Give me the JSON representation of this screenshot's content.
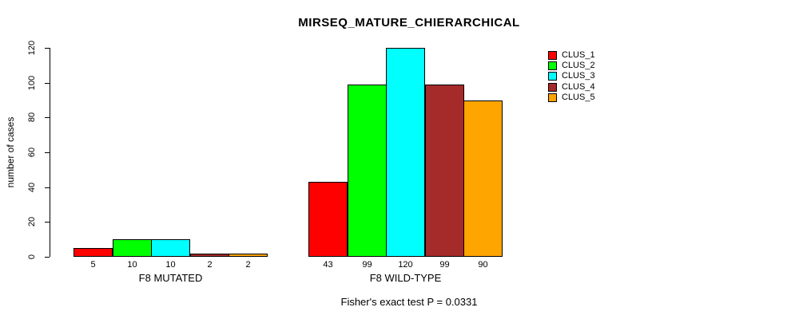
{
  "chart_data": {
    "type": "bar",
    "title": "MIRSEQ_MATURE_CHIERARCHICAL",
    "ylabel": "number of cases",
    "xlabel": "",
    "caption": "Fisher's exact test P = 0.0331",
    "ylim": [
      0,
      120
    ],
    "yticks": [
      0,
      20,
      40,
      60,
      80,
      100,
      120
    ],
    "grid": false,
    "legend_position": "right",
    "bar_value_labels_shown": true,
    "categories": [
      "F8 MUTATED",
      "F8 WILD-TYPE"
    ],
    "series": [
      {
        "name": "CLUS_1",
        "color": "#FF0000",
        "values": [
          5,
          43
        ]
      },
      {
        "name": "CLUS_2",
        "color": "#00FF00",
        "values": [
          10,
          99
        ]
      },
      {
        "name": "CLUS_3",
        "color": "#00FFFF",
        "values": [
          10,
          120
        ]
      },
      {
        "name": "CLUS_4",
        "color": "#A52A2A",
        "values": [
          2,
          99
        ]
      },
      {
        "name": "CLUS_5",
        "color": "#FFA500",
        "values": [
          2,
          90
        ]
      }
    ],
    "groups": [
      {
        "label": "F8 MUTATED",
        "values": [
          5,
          10,
          10,
          2,
          2
        ]
      },
      {
        "label": "F8 WILD-TYPE",
        "values": [
          43,
          99,
          120,
          99,
          90
        ]
      }
    ]
  }
}
